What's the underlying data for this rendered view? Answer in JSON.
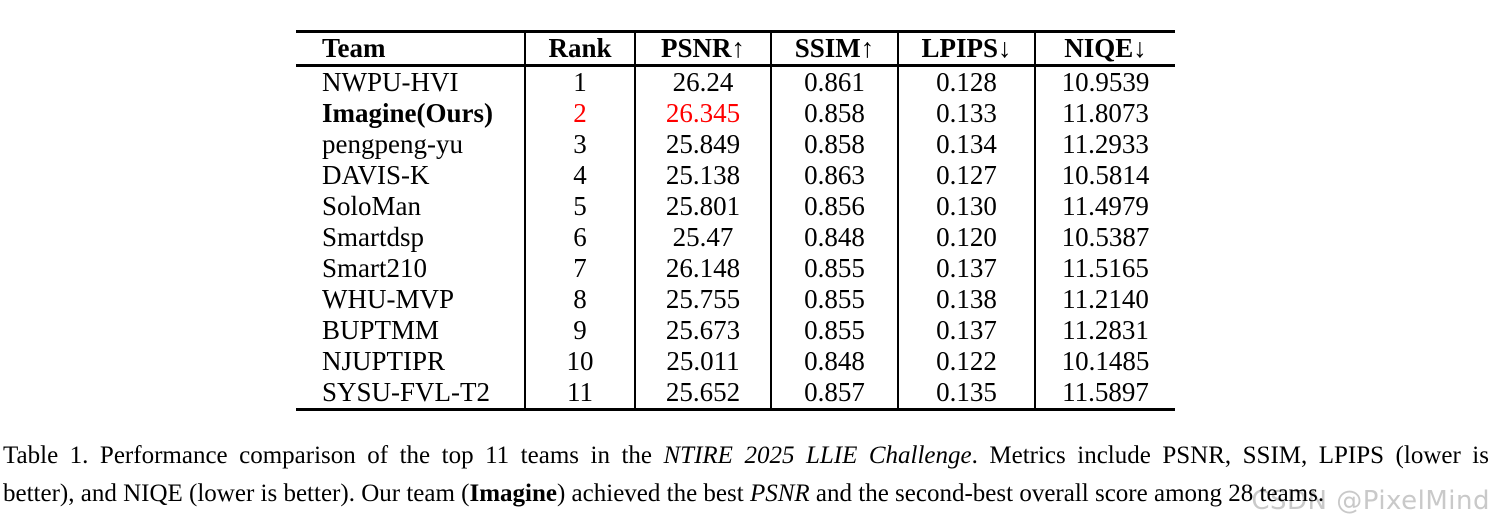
{
  "colors": {
    "accent_red": "#ff0000",
    "watermark_gray": "#c9c9c9",
    "text": "#000000",
    "background": "#ffffff"
  },
  "table": {
    "columns": [
      {
        "key": "team",
        "label": "Team"
      },
      {
        "key": "rank",
        "label": "Rank"
      },
      {
        "key": "psnr",
        "label": "PSNR↑"
      },
      {
        "key": "ssim",
        "label": "SSIM↑"
      },
      {
        "key": "lpips",
        "label": "LPIPS↓"
      },
      {
        "key": "niqe",
        "label": "NIQE↓"
      }
    ],
    "rows": [
      {
        "team": "NWPU-HVI",
        "rank": "1",
        "psnr": "26.24",
        "ssim": "0.861",
        "lpips": "0.128",
        "niqe": "10.9539"
      },
      {
        "team": "Imagine(Ours)",
        "rank": "2",
        "psnr": "26.345",
        "ssim": "0.858",
        "lpips": "0.133",
        "niqe": "11.8073",
        "team_bold": true,
        "red_cells": [
          "rank",
          "psnr"
        ]
      },
      {
        "team": "pengpeng-yu",
        "rank": "3",
        "psnr": "25.849",
        "ssim": "0.858",
        "lpips": "0.134",
        "niqe": "11.2933"
      },
      {
        "team": "DAVIS-K",
        "rank": "4",
        "psnr": "25.138",
        "ssim": "0.863",
        "lpips": "0.127",
        "niqe": "10.5814"
      },
      {
        "team": "SoloMan",
        "rank": "5",
        "psnr": "25.801",
        "ssim": "0.856",
        "lpips": "0.130",
        "niqe": "11.4979"
      },
      {
        "team": "Smartdsp",
        "rank": "6",
        "psnr": "25.47",
        "ssim": "0.848",
        "lpips": "0.120",
        "niqe": "10.5387"
      },
      {
        "team": "Smart210",
        "rank": "7",
        "psnr": "26.148",
        "ssim": "0.855",
        "lpips": "0.137",
        "niqe": "11.5165"
      },
      {
        "team": "WHU-MVP",
        "rank": "8",
        "psnr": "25.755",
        "ssim": "0.855",
        "lpips": "0.138",
        "niqe": "11.2140"
      },
      {
        "team": "BUPTMM",
        "rank": "9",
        "psnr": "25.673",
        "ssim": "0.855",
        "lpips": "0.137",
        "niqe": "11.2831"
      },
      {
        "team": "NJUPTIPR",
        "rank": "10",
        "psnr": "25.011",
        "ssim": "0.848",
        "lpips": "0.122",
        "niqe": "10.1485"
      },
      {
        "team": "SYSU-FVL-T2",
        "rank": "11",
        "psnr": "25.652",
        "ssim": "0.857",
        "lpips": "0.135",
        "niqe": "11.5897"
      }
    ]
  },
  "caption": {
    "line1_segments": [
      {
        "text": "Table 1. Performance comparison of the top 11 teams in the "
      },
      {
        "text": "NTIRE 2025 LLIE Challenge",
        "italic": true
      },
      {
        "text": ". Metrics include PSNR, SSIM, LPIPS (lower is"
      }
    ],
    "line2_segments": [
      {
        "text": "better), and NIQE (lower is better). Our team ("
      },
      {
        "text": "Imagine",
        "bold": true
      },
      {
        "text": ") achieved the best "
      },
      {
        "text": "PSNR",
        "italic": true
      },
      {
        "text": " and the second-best overall score among 28 teams."
      }
    ]
  },
  "watermark": {
    "text": "CSDN @PixelMind"
  }
}
